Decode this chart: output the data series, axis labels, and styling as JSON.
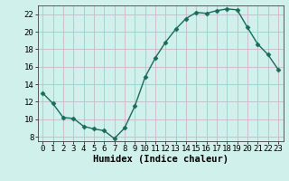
{
  "x": [
    0,
    1,
    2,
    3,
    4,
    5,
    6,
    7,
    8,
    9,
    10,
    11,
    12,
    13,
    14,
    15,
    16,
    17,
    18,
    19,
    20,
    21,
    22,
    23
  ],
  "y": [
    13.0,
    11.8,
    10.2,
    10.1,
    9.2,
    8.9,
    8.7,
    7.8,
    9.0,
    11.5,
    14.8,
    17.0,
    18.8,
    20.3,
    21.5,
    22.2,
    22.1,
    22.4,
    22.6,
    22.5,
    20.5,
    18.6,
    17.4,
    15.7
  ],
  "line_color": "#1a6b5a",
  "marker": "D",
  "markersize": 2.5,
  "linewidth": 1.0,
  "bg_color": "#cff0eb",
  "grid_color_major": "#c8b8c8",
  "grid_color_minor": "#c8b8c8",
  "xlabel": "Humidex (Indice chaleur)",
  "xlim": [
    -0.5,
    23.5
  ],
  "ylim": [
    7.5,
    23.0
  ],
  "yticks": [
    8,
    10,
    12,
    14,
    16,
    18,
    20,
    22
  ],
  "xtick_labels": [
    "0",
    "1",
    "2",
    "3",
    "4",
    "5",
    "6",
    "7",
    "8",
    "9",
    "10",
    "11",
    "12",
    "13",
    "14",
    "15",
    "16",
    "17",
    "18",
    "19",
    "20",
    "21",
    "22",
    "23"
  ],
  "xlabel_fontsize": 7.5,
  "tick_fontsize": 6.5,
  "font_family": "monospace"
}
